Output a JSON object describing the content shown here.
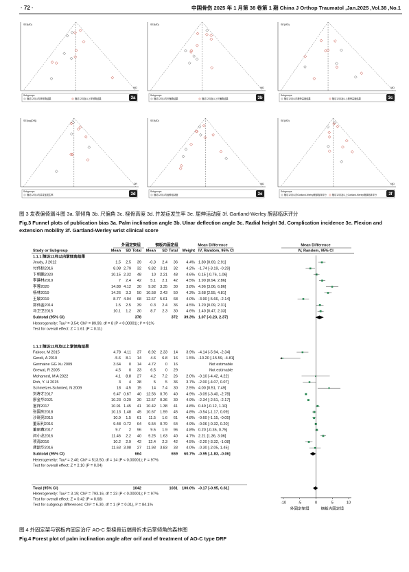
{
  "header": {
    "page": "· 72 ·",
    "journal": "中国骨伤 2025 年 1 月第 38 卷第 1 期 China J Orthop Traumatol ,Jan.2025 ,Vol.38 ,No.1"
  },
  "fig3": {
    "caption_cn": "图 3 发表偏倚漏斗图 3a. 掌倾角 3b. 尺偏角 3c. 桡骨高度 3d. 并发症发生率 3e. 屈伸活动度 3f. Gartland-Werley 腕部临床评分",
    "caption_en": "Fig.3 Funnel plots of publication bias 3a. Palm inclination angle 3b. Ulnar deflection angle 3c. Radial height 3d. Complication incidence 3e. Flexion and extension mobility 3f. Gartland-Werley wrist clinical score",
    "panels": [
      {
        "tag": "3a",
        "y_label": "SE(MD)",
        "x_label": "MD",
        "legend_title": "Subgroups",
        "legend": [
          "随访12月以内掌倾角结果",
          "随访12月及以上掌倾角结果"
        ]
      },
      {
        "tag": "3b",
        "y_label": "SE(MD)",
        "x_label": "MD",
        "legend_title": "Subgroups",
        "legend": [
          "随访12月以内尺偏角结果",
          "随访12月及以上尺偏角结果"
        ]
      },
      {
        "tag": "3c",
        "y_label": "SE(MD)",
        "x_label": "MD",
        "legend_title": "Subgroups",
        "legend": [
          "随访12月以内桡骨高度结果",
          "随访12月及以上桡骨高度结果"
        ]
      },
      {
        "tag": "3d",
        "y_label": "SE(log[OR])",
        "x_label": "OR",
        "legend_title": "Subgroups",
        "legend": [
          "随访12月以内并发症发生率"
        ]
      },
      {
        "tag": "3e",
        "y_label": "SE(MD)",
        "x_label": "MD",
        "legend_title": "Subgroups",
        "legend": [
          "随访12月以内屈伸活动度"
        ]
      },
      {
        "tag": "3f",
        "y_label": "SE(MD)",
        "x_label": "MD",
        "legend_title": "Subgroups",
        "legend": [
          "随访12月以内Gartland-Werley腕部临床评分",
          "随访12月及以上Gartland-Werley腕部临床评分"
        ]
      }
    ]
  },
  "fig4": {
    "caption_cn": "图 4 外固定架与钢板内固定治疗 AO-C 型桡骨远端骨折术后掌倾角的森林图",
    "caption_en": "Fig.4 Forest plot of palm inclination angle after orif and ef treatment of AO-C type DRF",
    "group_headers": [
      "外固定架组",
      "钢板内固定组",
      "Mean Difference",
      "Mean Difference"
    ],
    "columns": [
      "Study or Subgroup",
      "Mean",
      "SD",
      "Total",
      "Mean",
      "SD",
      "Total",
      "Weight",
      "IV, Random, 95% CI",
      "IV, Random, 95% CI"
    ],
    "xlim": [
      -10,
      10
    ],
    "xticks": [
      -10,
      -5,
      0,
      5,
      10
    ],
    "axis_labels": [
      "外固定架组",
      "钢板内固定组"
    ],
    "subgroups": [
      {
        "title": "1.1.1 随访12月以内掌倾角结果",
        "rows": [
          {
            "study": "Jeudy, J 2012",
            "e": [
              "1.5",
              "2.5",
              "39"
            ],
            "c": [
              "-0.3",
              "2.4",
              "36"
            ],
            "weight": "4.4%",
            "ci_text": "1.80 [0.69, 2.91]",
            "md": 1.8,
            "ci": [
              0.69,
              2.91
            ]
          },
          {
            "study": "付伟标2016",
            "e": [
              "8.08",
              "2.79",
              "32"
            ],
            "c": [
              "9.82",
              "3.11",
              "32"
            ],
            "weight": "4.2%",
            "ci_text": "-1.74 [-3.19, -0.29]",
            "md": -1.74,
            "ci": [
              -3.19,
              -0.29
            ]
          },
          {
            "study": "卞明鹏2020",
            "e": [
              "10.15",
              "2.32",
              "48"
            ],
            "c": [
              "10",
              "2.21",
              "48"
            ],
            "weight": "4.6%",
            "ci_text": "0.15 [-0.76, 1.06]",
            "md": 0.15,
            "ci": [
              -0.76,
              1.06
            ]
          },
          {
            "study": "李建林2019",
            "e": [
              "7",
              "2.4",
              "42"
            ],
            "c": [
              "5.1",
              "2.1",
              "42"
            ],
            "weight": "4.5%",
            "ci_text": "1.90 [0.94, 2.86]",
            "md": 1.9,
            "ci": [
              0.94,
              2.86
            ]
          },
          {
            "study": "李蓉2020",
            "e": [
              "14.88",
              "4.12",
              "30"
            ],
            "c": [
              "9.92",
              "3.35",
              "30"
            ],
            "weight": "3.8%",
            "ci_text": "4.96 [3.06, 6.86]",
            "md": 4.96,
            "ci": [
              3.06,
              6.86
            ]
          },
          {
            "study": "杨林2019",
            "e": [
              "14.26",
              "3.3",
              "50"
            ],
            "c": [
              "10.58",
              "2.43",
              "50"
            ],
            "weight": "4.3%",
            "ci_text": "3.68 [2.55, 4.81]",
            "md": 3.68,
            "ci": [
              2.55,
              4.81
            ]
          },
          {
            "study": "王敏2019",
            "e": [
              "8.77",
              "4.04",
              "68"
            ],
            "c": [
              "12.67",
              "5.61",
              "68"
            ],
            "weight": "4.0%",
            "ci_text": "-3.90 [-5.66, -2.14]",
            "md": -3.9,
            "ci": [
              -5.66,
              -2.14
            ]
          },
          {
            "study": "郭伟金2014",
            "e": [
              "1.5",
              "2.5",
              "39"
            ],
            "c": [
              "0.3",
              "2.4",
              "36"
            ],
            "weight": "4.5%",
            "ci_text": "1.20 [0.09, 2.31]",
            "md": 1.2,
            "ci": [
              0.09,
              2.31
            ]
          },
          {
            "study": "马卫卫2015",
            "e": [
              "10.1",
              "1.2",
              "30"
            ],
            "c": [
              "8.7",
              "2.3",
              "30"
            ],
            "weight": "4.6%",
            "ci_text": "1.40 [0.47, 2.33]",
            "md": 1.4,
            "ci": [
              0.47,
              2.33
            ]
          }
        ],
        "subtotal": {
          "label": "Subtotal (95% CI)",
          "e_total": "378",
          "c_total": "372",
          "weight": "39.3%",
          "ci_text": "1.07 [-0.23, 2.37]",
          "md": 1.07,
          "ci": [
            -0.23,
            2.37
          ]
        },
        "heterogeneity": "Heterogeneity: Tau² = 3.54; Chi² = 89.99, df = 8 (P < 0.00001); I² = 91%",
        "overall": "Test for overall effect: Z = 1.61 (P = 0.11)"
      },
      {
        "title": "1.1.2 随访12月及以上掌倾角结果",
        "rows": [
          {
            "study": "Fakoor, M 2015",
            "e": [
              "4.78",
              "4.11",
              "37"
            ],
            "c": [
              "8.92",
              "2.33",
              "14"
            ],
            "weight": "3.9%",
            "ci_text": "-4.14 [-5.94, -2.34]",
            "md": -4.14,
            "ci": [
              -5.94,
              -2.34
            ]
          },
          {
            "study": "Gereli, A 2010",
            "e": [
              "-5.6",
              "8.1",
              "14"
            ],
            "c": [
              "4.6",
              "6.8",
              "16"
            ],
            "weight": "1.5%",
            "ci_text": "-10.20 [-15.59, -4.81]",
            "md": -10.2,
            "ci": [
              -15.59,
              -4.81
            ]
          },
          {
            "study": "Germaine GG Xu 2009",
            "e": [
              "3.64",
              "0",
              "14"
            ],
            "c": [
              "4.72",
              "0",
              "16"
            ],
            "ci_text": "Not estimable"
          },
          {
            "study": "Grewal, R 2005",
            "e": [
              "4.5",
              "0",
              "33"
            ],
            "c": [
              "6.5",
              "0",
              "29"
            ],
            "ci_text": "Not estimable"
          },
          {
            "study": "Mohamed, M A 2022",
            "e": [
              "4.1",
              "8.8",
              "27"
            ],
            "c": [
              "4.2",
              "7.2",
              "26"
            ],
            "weight": "2.0%",
            "ci_text": "-0.10 [-4.42, 4.22]",
            "md": -0.1,
            "ci": [
              -4.42,
              4.22
            ]
          },
          {
            "study": "Roh, Y. H 2015",
            "e": [
              "3",
              "4",
              "38"
            ],
            "c": [
              "5",
              "5",
              "36"
            ],
            "weight": "3.7%",
            "ci_text": "-2.00 [-4.07, 0.07]",
            "md": -2,
            "ci": [
              -4.07,
              0.07
            ]
          },
          {
            "study": "Schmelzer-Schmied, N 2009",
            "e": [
              "18",
              "4.5",
              "15"
            ],
            "c": [
              "14",
              "7.4",
              "30"
            ],
            "weight": "2.5%",
            "ci_text": "4.00 [0.51, 7.49]",
            "md": 4,
            "ci": [
              0.51,
              7.49
            ]
          },
          {
            "study": "刘寿才2017",
            "e": [
              "9.47",
              "0.67",
              "40"
            ],
            "c": [
              "12.56",
              "0.76",
              "40"
            ],
            "weight": "4.9%",
            "ci_text": "-3.09 [-3.40, -2.78]",
            "md": -3.09,
            "ci": [
              -3.4,
              -2.78
            ]
          },
          {
            "study": "廖金华2021",
            "e": [
              "10.23",
              "0.29",
              "30"
            ],
            "c": [
              "12.57",
              "0.36",
              "30"
            ],
            "weight": "4.9%",
            "ci_text": "-2.34 [-2.51, -2.17]",
            "md": -2.34,
            "ci": [
              -2.51,
              -2.17
            ]
          },
          {
            "study": "富祥2017",
            "e": [
              "10.91",
              "1.45",
              "41"
            ],
            "c": [
              "10.42",
              "1.38",
              "41"
            ],
            "weight": "4.8%",
            "ci_text": "0.49 [-0.12, 1.10]",
            "md": 0.49,
            "ci": [
              -0.12,
              1.1
            ]
          },
          {
            "study": "张国庆2018",
            "e": [
              "10.13",
              "1.48",
              "45"
            ],
            "c": [
              "10.67",
              "1.59",
              "45"
            ],
            "weight": "4.8%",
            "ci_text": "-0.54 [-1.17, 0.09]",
            "md": -0.54,
            "ci": [
              -1.17,
              0.09
            ]
          },
          {
            "study": "沙晓亮2015",
            "e": [
              "10.9",
              "1.5",
              "61"
            ],
            "c": [
              "11.5",
              "1.6",
              "61"
            ],
            "weight": "4.8%",
            "ci_text": "-0.60 [-1.15, -0.05]",
            "md": -0.6,
            "ci": [
              -1.15,
              -0.05
            ]
          },
          {
            "study": "董宏利2016",
            "e": [
              "9.48",
              "0.72",
              "64"
            ],
            "c": [
              "9.54",
              "0.79",
              "64"
            ],
            "weight": "4.9%",
            "ci_text": "-0.06 [-0.32, 0.20]",
            "md": -0.06,
            "ci": [
              -0.32,
              0.2
            ]
          },
          {
            "study": "董丽春2017",
            "e": [
              "9.7",
              "2",
              "96"
            ],
            "c": [
              "9.5",
              "1.9",
              "96"
            ],
            "weight": "4.8%",
            "ci_text": "0.20 [-0.35, 0.75]",
            "md": 0.2,
            "ci": [
              -0.35,
              0.75
            ]
          },
          {
            "study": "闫小龙2016",
            "e": [
              "11.46",
              "2.2",
              "40"
            ],
            "c": [
              "9.25",
              "1.63",
              "40"
            ],
            "weight": "4.7%",
            "ci_text": "2.21 [1.36, 3.06]",
            "md": 2.21,
            "ci": [
              1.36,
              3.06
            ]
          },
          {
            "study": "项海2016",
            "e": [
              "10.2",
              "2.9",
              "42"
            ],
            "c": [
              "12.4",
              "2.3",
              "42"
            ],
            "weight": "4.5%",
            "ci_text": "-2.20 [-3.32, -1.08]",
            "md": -2.2,
            "ci": [
              -3.32,
              -1.08
            ]
          },
          {
            "study": "龚韶华2016",
            "e": [
              "11.63",
              "3.08",
              "27"
            ],
            "c": [
              "11.93",
              "3.83",
              "33"
            ],
            "weight": "4.0%",
            "ci_text": "-0.30 [-2.05, 1.45]",
            "md": -0.3,
            "ci": [
              -2.05,
              1.45
            ]
          }
        ],
        "subtotal": {
          "label": "Subtotal (95% CI)",
          "e_total": "664",
          "c_total": "659",
          "weight": "60.7%",
          "ci_text": "-0.95 [-1.83, -0.06]",
          "md": -0.95,
          "ci": [
            -1.83,
            -0.06
          ]
        },
        "heterogeneity": "Heterogeneity: Tau² = 2.40; Chi² = 513.50, df = 14 (P < 0.00001); I² = 97%",
        "overall": "Test for overall effect: Z = 2.10 (P = 0.04)"
      }
    ],
    "total": {
      "label": "Total (95% CI)",
      "e_total": "1042",
      "c_total": "1031",
      "weight": "100.0%",
      "ci_text": "-0.17 [-0.95, 0.61]",
      "md": -0.17,
      "ci": [
        -0.95,
        0.61
      ]
    },
    "total_notes": [
      "Heterogeneity: Tau² = 3.19; Chi² = 793.16, df = 23 (P < 0.00001); I² = 97%",
      "Test for overall effect: Z = 0.42 (P = 0.68)",
      "Test for subgroup differences: Chi² = 6.30, df = 1 (P = 0.01), I² = 84.1%"
    ]
  }
}
